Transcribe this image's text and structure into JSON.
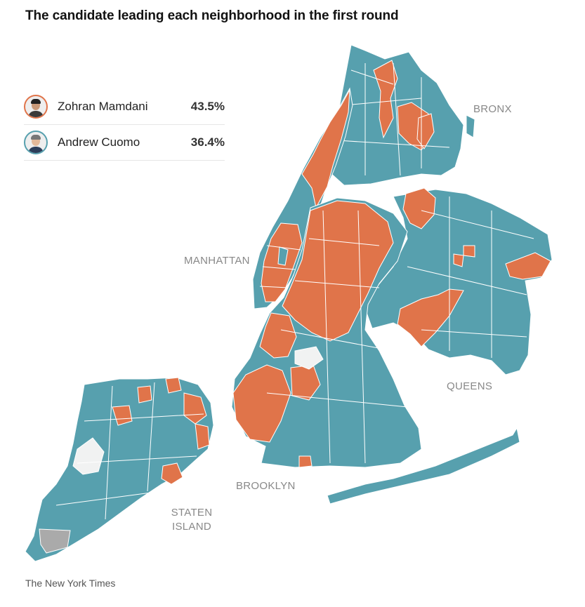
{
  "title": "The candidate leading each neighborhood in the first round",
  "legend": [
    {
      "name": "Zohran Mamdani",
      "pct": "43.5%",
      "color": "#e0744a"
    },
    {
      "name": "Andrew Cuomo",
      "pct": "36.4%",
      "color": "#57a0ae"
    }
  ],
  "colors": {
    "mamdani": "#e0744a",
    "cuomo": "#57a0ae",
    "no_data": "#aaaaaa",
    "land": "#f1f2f2"
  },
  "boroughs": {
    "bronx": "BRONX",
    "manhattan": "MANHATTAN",
    "queens": "QUEENS",
    "brooklyn": "BROOKLYN",
    "staten_island": "STATEN ISLAND"
  },
  "source": "The New York Times"
}
